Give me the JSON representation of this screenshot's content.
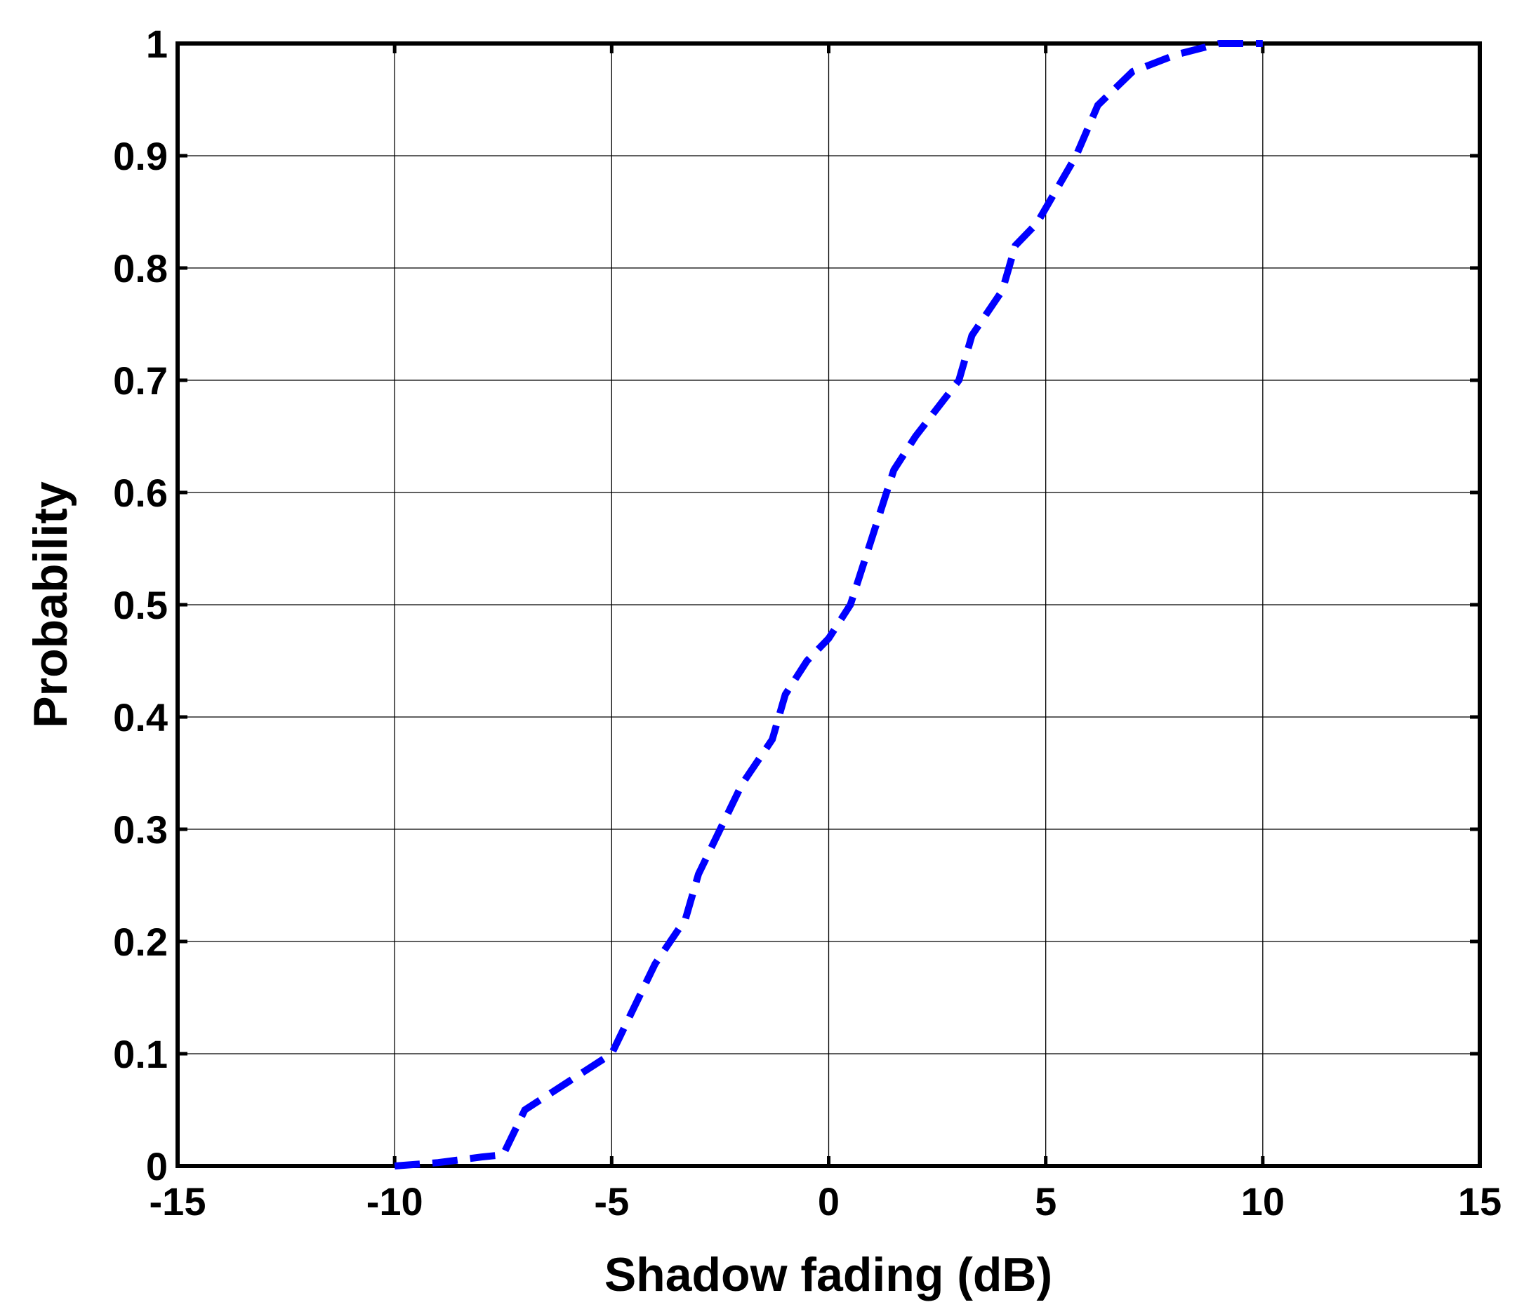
{
  "chart_data": {
    "type": "line",
    "x_label": "Shadow fading (dB)",
    "y_label": "Probability",
    "series": [
      {
        "color": "#0000ff",
        "line_style": "dashed",
        "x": [
          -10,
          -9,
          -8,
          -7.5,
          -7,
          -6,
          -5,
          -4.5,
          -4,
          -3.3,
          -3,
          -2.5,
          -2,
          -1.3,
          -1,
          -0.5,
          0,
          0.5,
          1.5,
          2,
          3,
          3.3,
          4,
          4.3,
          4.8,
          5.7,
          6.2,
          7,
          8,
          9,
          10
        ],
        "values": [
          0,
          0.003,
          0.008,
          0.01,
          0.05,
          0.075,
          0.1,
          0.14,
          0.18,
          0.22,
          0.26,
          0.3,
          0.34,
          0.38,
          0.42,
          0.45,
          0.47,
          0.5,
          0.62,
          0.65,
          0.7,
          0.74,
          0.78,
          0.82,
          0.84,
          0.9,
          0.945,
          0.975,
          0.99,
          1.0,
          1.0
        ]
      }
    ],
    "xlim": [
      -15,
      15
    ],
    "xticks": [
      -15,
      -10,
      -5,
      0,
      5,
      10,
      15
    ],
    "ylim": [
      0,
      1
    ],
    "yticks": [
      0,
      0.1,
      0.2,
      0.3,
      0.4,
      0.5,
      0.6,
      0.7,
      0.8,
      0.9,
      1
    ],
    "grid": true
  }
}
